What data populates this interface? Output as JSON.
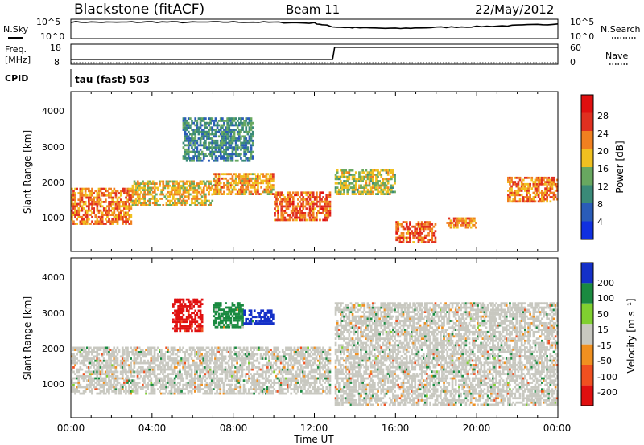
{
  "header": {
    "station": "Blackstone (fitACF)",
    "beam": "Beam 11",
    "date": "22/May/2012"
  },
  "noise_panel": {
    "left_label": "N.Sky",
    "right_label": "N.Search",
    "left_ticks": [
      "10^5",
      "10^0"
    ],
    "right_ticks": [
      "10^5",
      "10^0"
    ]
  },
  "freq_panel": {
    "left_label_1": "Freq.",
    "left_label_2": "[MHz]",
    "right_label": "Nave",
    "left_ticks": [
      "18",
      "8"
    ],
    "right_ticks": [
      "60",
      "0"
    ]
  },
  "cpid": {
    "label": "CPID",
    "mode": "tau (fast) 503"
  },
  "power_panel": {
    "ylabel": "Slant Range [km]",
    "yticks": [
      "1000",
      "2000",
      "3000",
      "4000"
    ],
    "colorbar_label": "Power [dB]",
    "colorbar_ticks": [
      "4",
      "8",
      "12",
      "16",
      "20",
      "24",
      "28"
    ]
  },
  "velocity_panel": {
    "ylabel": "Slant Range [km]",
    "yticks": [
      "1000",
      "2000",
      "3000",
      "4000"
    ],
    "colorbar_label": "Velocity [m s⁻¹]",
    "colorbar_ticks": [
      "200",
      "100",
      "50",
      "15",
      "-15",
      "-50",
      "-100",
      "-200"
    ]
  },
  "xaxis": {
    "label": "Time UT",
    "ticks": [
      "00:00",
      "04:00",
      "08:00",
      "12:00",
      "16:00",
      "20:00",
      "00:00"
    ]
  },
  "colors": {
    "power_scale": [
      "#1030e0",
      "#2a5cb8",
      "#3a8a78",
      "#68a860",
      "#f0c020",
      "#f08020",
      "#e03020",
      "#e01010"
    ],
    "velocity_scale": [
      "#1430c8",
      "#1a8a40",
      "#80d030",
      "#c8c8c0",
      "#f09020",
      "#f05020",
      "#e01010"
    ]
  },
  "chart_data": [
    {
      "type": "line",
      "title": "N.Sky / N.Search",
      "x_range_hours": [
        0,
        24
      ],
      "ylim_log10": [
        0,
        5
      ],
      "series": [
        {
          "name": "N.Sky",
          "x": [
            0,
            2,
            4,
            6,
            8,
            10,
            12,
            13,
            14,
            16,
            18,
            20,
            22,
            24
          ],
          "values_log10": [
            4.3,
            4.2,
            4.3,
            4.2,
            4.3,
            4.2,
            4.0,
            3.0,
            2.8,
            2.6,
            2.9,
            3.1,
            3.4,
            3.8
          ]
        }
      ]
    },
    {
      "type": "line",
      "title": "Freq. / Nave",
      "x_range_hours": [
        0,
        24
      ],
      "series": [
        {
          "name": "Freq.",
          "x": [
            0,
            12.9,
            13.0,
            24
          ],
          "values": [
            10.5,
            10.5,
            16.5,
            16.5
          ],
          "ylim": [
            8,
            18
          ]
        },
        {
          "name": "Nave",
          "x": [
            0,
            24
          ],
          "values": [
            4,
            4
          ],
          "ylim": [
            0,
            60
          ]
        }
      ]
    },
    {
      "type": "heatmap",
      "title": "Power [dB]",
      "x_range_hours": [
        0,
        24
      ],
      "ylim_km": [
        180,
        4500
      ],
      "bands": [
        {
          "t0": 0.0,
          "t1": 3.0,
          "r0": 900,
          "r1": 1900,
          "db": 22
        },
        {
          "t0": 3.0,
          "t1": 7.0,
          "r0": 1400,
          "r1": 2100,
          "db": 18
        },
        {
          "t0": 7.0,
          "t1": 10.0,
          "r0": 1700,
          "r1": 2300,
          "db": 20
        },
        {
          "t0": 10.0,
          "t1": 12.8,
          "r0": 1000,
          "r1": 1800,
          "db": 24
        },
        {
          "t0": 5.5,
          "t1": 9.0,
          "r0": 2600,
          "r1": 3800,
          "db": 10
        },
        {
          "t0": 13.0,
          "t1": 16.0,
          "r0": 1700,
          "r1": 2400,
          "db": 16
        },
        {
          "t0": 16.0,
          "t1": 18.0,
          "r0": 400,
          "r1": 1000,
          "db": 24
        },
        {
          "t0": 18.5,
          "t1": 20.0,
          "r0": 800,
          "r1": 1100,
          "db": 22
        },
        {
          "t0": 21.5,
          "t1": 24.0,
          "r0": 1500,
          "r1": 2200,
          "db": 22
        }
      ]
    },
    {
      "type": "heatmap",
      "title": "Velocity [m s⁻¹]",
      "x_range_hours": [
        0,
        24
      ],
      "ylim_km": [
        180,
        4500
      ],
      "bands": [
        {
          "t0": 0.0,
          "t1": 12.8,
          "r0": 800,
          "r1": 2100,
          "v": 0
        },
        {
          "t0": 5.0,
          "t1": 6.5,
          "r0": 2500,
          "r1": 3400,
          "v": -200
        },
        {
          "t0": 7.0,
          "t1": 8.5,
          "r0": 2600,
          "r1": 3300,
          "v": 50
        },
        {
          "t0": 8.5,
          "t1": 10.0,
          "r0": 2700,
          "r1": 3100,
          "v": 200
        },
        {
          "t0": 13.0,
          "t1": 24.0,
          "r0": 500,
          "r1": 3300,
          "v": 0
        }
      ]
    }
  ]
}
